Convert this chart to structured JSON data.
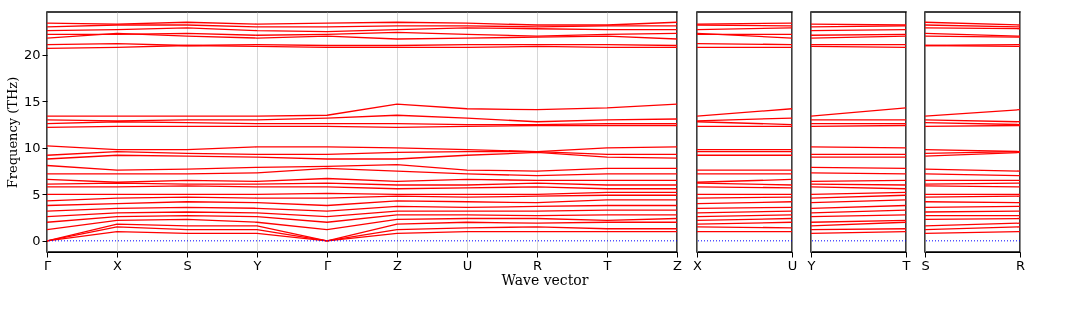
{
  "chart_data": [
    {
      "type": "line",
      "ylabel": "Frequency (THz)",
      "xlabel": "Wave vector",
      "categories": [
        "Γ",
        "X",
        "S",
        "Y",
        "Γ",
        "Z",
        "U",
        "R",
        "T",
        "Z"
      ],
      "ylim": [
        -1.2,
        24.6
      ],
      "yticks": [
        0,
        5,
        10,
        15,
        20
      ],
      "grid": "x",
      "legend": false,
      "marker": "none",
      "line_style": "solid",
      "ref_lines": [
        {
          "axis": "y",
          "value": 0,
          "color": "#0000ff",
          "line_style": "dotted"
        }
      ],
      "series": [
        {
          "color": "#ff0000",
          "values": [
            0,
            1.0,
            0.8,
            0.8,
            0,
            0.8,
            1.0,
            1.0,
            1.0,
            1.0
          ]
        },
        {
          "color": "#ff0000",
          "values": [
            0,
            1.5,
            1.2,
            1.2,
            0,
            1.2,
            1.4,
            1.5,
            1.3,
            1.3
          ]
        },
        {
          "color": "#ff0000",
          "values": [
            0,
            1.8,
            1.6,
            1.6,
            0,
            1.8,
            2.0,
            1.9,
            2.0,
            2.0
          ]
        },
        {
          "color": "#ff0000",
          "values": [
            1.2,
            2.2,
            2.3,
            2.0,
            1.2,
            2.3,
            2.4,
            2.4,
            2.2,
            2.4
          ]
        },
        {
          "color": "#ff0000",
          "values": [
            2.0,
            2.6,
            2.7,
            2.6,
            2.0,
            2.8,
            2.8,
            2.7,
            2.8,
            2.8
          ]
        },
        {
          "color": "#ff0000",
          "values": [
            2.6,
            3.0,
            3.1,
            3.0,
            2.6,
            3.2,
            3.2,
            3.2,
            3.3,
            3.3
          ]
        },
        {
          "color": "#ff0000",
          "values": [
            3.2,
            3.5,
            3.6,
            3.5,
            3.2,
            3.7,
            3.6,
            3.7,
            3.8,
            3.8
          ]
        },
        {
          "color": "#ff0000",
          "values": [
            3.8,
            4.0,
            4.2,
            4.1,
            3.8,
            4.3,
            4.2,
            4.1,
            4.4,
            4.4
          ]
        },
        {
          "color": "#ff0000",
          "values": [
            4.3,
            4.6,
            4.7,
            4.6,
            4.6,
            4.8,
            4.7,
            4.8,
            4.9,
            4.9
          ]
        },
        {
          "color": "#ff0000",
          "values": [
            5.0,
            5.0,
            5.0,
            5.0,
            5.1,
            5.0,
            5.0,
            5.0,
            5.2,
            5.2
          ]
        },
        {
          "color": "#ff0000",
          "values": [
            5.8,
            5.8,
            5.9,
            5.8,
            5.8,
            5.6,
            5.7,
            5.8,
            5.6,
            5.6
          ]
        },
        {
          "color": "#ff0000",
          "values": [
            6.1,
            6.2,
            6.1,
            6.1,
            6.2,
            6.0,
            6.0,
            6.2,
            6.0,
            6.0
          ]
        },
        {
          "color": "#ff0000",
          "values": [
            6.6,
            6.3,
            6.5,
            6.4,
            6.7,
            6.4,
            6.6,
            6.5,
            6.5,
            6.5
          ]
        },
        {
          "color": "#ff0000",
          "values": [
            7.2,
            7.2,
            7.2,
            7.3,
            7.8,
            7.5,
            7.2,
            7.0,
            7.2,
            7.2
          ]
        },
        {
          "color": "#ff0000",
          "values": [
            8.1,
            7.6,
            7.7,
            7.9,
            8.0,
            8.2,
            7.6,
            7.5,
            7.8,
            7.8
          ]
        },
        {
          "color": "#ff0000",
          "values": [
            8.8,
            9.2,
            9.1,
            9.0,
            8.8,
            8.8,
            9.2,
            9.5,
            9.0,
            8.9
          ]
        },
        {
          "color": "#ff0000",
          "values": [
            9.2,
            9.6,
            9.4,
            9.3,
            9.3,
            9.5,
            9.6,
            9.6,
            9.3,
            9.3
          ]
        },
        {
          "color": "#ff0000",
          "values": [
            10.2,
            9.8,
            9.8,
            10.1,
            10.1,
            10.0,
            9.8,
            9.6,
            10.0,
            10.1
          ]
        },
        {
          "color": "#ff0000",
          "values": [
            12.2,
            12.3,
            12.3,
            12.3,
            12.3,
            12.2,
            12.3,
            12.4,
            12.4,
            12.4
          ]
        },
        {
          "color": "#ff0000",
          "values": [
            12.6,
            12.8,
            12.7,
            12.6,
            12.6,
            12.6,
            12.5,
            12.5,
            12.6,
            12.6
          ]
        },
        {
          "color": "#ff0000",
          "values": [
            13.0,
            12.9,
            13.0,
            13.0,
            13.2,
            13.5,
            13.2,
            12.8,
            13.0,
            13.1
          ]
        },
        {
          "color": "#ff0000",
          "values": [
            13.4,
            13.4,
            13.4,
            13.4,
            13.5,
            14.7,
            14.2,
            14.1,
            14.3,
            14.7
          ]
        },
        {
          "color": "#ff0000",
          "values": [
            20.7,
            20.8,
            21.0,
            20.9,
            20.8,
            20.8,
            20.8,
            20.9,
            20.8,
            20.8
          ]
        },
        {
          "color": "#ff0000",
          "values": [
            21.1,
            21.2,
            21.0,
            21.1,
            21.0,
            21.0,
            21.1,
            21.1,
            21.1,
            21.0
          ]
        },
        {
          "color": "#ff0000",
          "values": [
            21.8,
            22.3,
            22.0,
            21.8,
            22.0,
            21.7,
            21.8,
            21.9,
            22.0,
            21.7
          ]
        },
        {
          "color": "#ff0000",
          "values": [
            22.2,
            22.2,
            22.3,
            22.1,
            22.2,
            22.4,
            22.2,
            22.0,
            22.2,
            22.3
          ]
        },
        {
          "color": "#ff0000",
          "values": [
            22.6,
            22.7,
            22.9,
            22.6,
            22.5,
            22.7,
            22.9,
            22.8,
            22.7,
            22.7
          ]
        },
        {
          "color": "#ff0000",
          "values": [
            23.0,
            23.2,
            23.2,
            23.0,
            23.0,
            23.1,
            23.1,
            23.0,
            23.1,
            23.1
          ]
        },
        {
          "color": "#ff0000",
          "values": [
            23.4,
            23.3,
            23.5,
            23.3,
            23.4,
            23.5,
            23.4,
            23.2,
            23.2,
            23.5
          ]
        }
      ]
    },
    {
      "type": "line",
      "categories": [
        "X",
        "U"
      ],
      "ylim": [
        -1.2,
        24.6
      ],
      "yticks": [
        0,
        5,
        10,
        15,
        20
      ],
      "tick_labels": "x",
      "grid": "x",
      "legend": false,
      "marker": "none",
      "line_style": "solid",
      "ref_lines": [
        {
          "axis": "y",
          "value": 0,
          "color": "#0000ff",
          "line_style": "dotted"
        }
      ],
      "series": [
        {
          "color": "#ff0000",
          "values": [
            1.0,
            1.0
          ]
        },
        {
          "color": "#ff0000",
          "values": [
            1.5,
            1.4
          ]
        },
        {
          "color": "#ff0000",
          "values": [
            1.8,
            2.0
          ]
        },
        {
          "color": "#ff0000",
          "values": [
            2.2,
            2.4
          ]
        },
        {
          "color": "#ff0000",
          "values": [
            2.6,
            2.8
          ]
        },
        {
          "color": "#ff0000",
          "values": [
            3.0,
            3.2
          ]
        },
        {
          "color": "#ff0000",
          "values": [
            3.5,
            3.6
          ]
        },
        {
          "color": "#ff0000",
          "values": [
            4.0,
            4.2
          ]
        },
        {
          "color": "#ff0000",
          "values": [
            4.6,
            4.7
          ]
        },
        {
          "color": "#ff0000",
          "values": [
            5.0,
            5.0
          ]
        },
        {
          "color": "#ff0000",
          "values": [
            5.8,
            5.7
          ]
        },
        {
          "color": "#ff0000",
          "values": [
            6.2,
            6.0
          ]
        },
        {
          "color": "#ff0000",
          "values": [
            6.3,
            6.6
          ]
        },
        {
          "color": "#ff0000",
          "values": [
            7.2,
            7.2
          ]
        },
        {
          "color": "#ff0000",
          "values": [
            7.6,
            7.6
          ]
        },
        {
          "color": "#ff0000",
          "values": [
            9.2,
            9.2
          ]
        },
        {
          "color": "#ff0000",
          "values": [
            9.6,
            9.6
          ]
        },
        {
          "color": "#ff0000",
          "values": [
            9.8,
            9.8
          ]
        },
        {
          "color": "#ff0000",
          "values": [
            12.3,
            12.3
          ]
        },
        {
          "color": "#ff0000",
          "values": [
            12.8,
            12.5
          ]
        },
        {
          "color": "#ff0000",
          "values": [
            12.9,
            13.2
          ]
        },
        {
          "color": "#ff0000",
          "values": [
            13.4,
            14.2
          ]
        },
        {
          "color": "#ff0000",
          "values": [
            20.8,
            20.8
          ]
        },
        {
          "color": "#ff0000",
          "values": [
            21.2,
            21.1
          ]
        },
        {
          "color": "#ff0000",
          "values": [
            22.3,
            21.8
          ]
        },
        {
          "color": "#ff0000",
          "values": [
            22.2,
            22.2
          ]
        },
        {
          "color": "#ff0000",
          "values": [
            22.7,
            22.9
          ]
        },
        {
          "color": "#ff0000",
          "values": [
            23.2,
            23.1
          ]
        },
        {
          "color": "#ff0000",
          "values": [
            23.3,
            23.4
          ]
        }
      ]
    },
    {
      "type": "line",
      "categories": [
        "Y",
        "T"
      ],
      "ylim": [
        -1.2,
        24.6
      ],
      "yticks": [
        0,
        5,
        10,
        15,
        20
      ],
      "tick_labels": "x",
      "grid": "x",
      "legend": false,
      "marker": "none",
      "line_style": "solid",
      "ref_lines": [
        {
          "axis": "y",
          "value": 0,
          "color": "#0000ff",
          "line_style": "dotted"
        }
      ],
      "series": [
        {
          "color": "#ff0000",
          "values": [
            0.8,
            1.0
          ]
        },
        {
          "color": "#ff0000",
          "values": [
            1.2,
            1.3
          ]
        },
        {
          "color": "#ff0000",
          "values": [
            1.6,
            2.0
          ]
        },
        {
          "color": "#ff0000",
          "values": [
            2.0,
            2.2
          ]
        },
        {
          "color": "#ff0000",
          "values": [
            2.6,
            2.8
          ]
        },
        {
          "color": "#ff0000",
          "values": [
            3.0,
            3.3
          ]
        },
        {
          "color": "#ff0000",
          "values": [
            3.5,
            3.8
          ]
        },
        {
          "color": "#ff0000",
          "values": [
            4.1,
            4.4
          ]
        },
        {
          "color": "#ff0000",
          "values": [
            4.6,
            4.9
          ]
        },
        {
          "color": "#ff0000",
          "values": [
            5.0,
            5.2
          ]
        },
        {
          "color": "#ff0000",
          "values": [
            5.8,
            5.6
          ]
        },
        {
          "color": "#ff0000",
          "values": [
            6.1,
            6.0
          ]
        },
        {
          "color": "#ff0000",
          "values": [
            6.4,
            6.5
          ]
        },
        {
          "color": "#ff0000",
          "values": [
            7.3,
            7.2
          ]
        },
        {
          "color": "#ff0000",
          "values": [
            7.9,
            7.8
          ]
        },
        {
          "color": "#ff0000",
          "values": [
            9.0,
            9.0
          ]
        },
        {
          "color": "#ff0000",
          "values": [
            9.3,
            9.3
          ]
        },
        {
          "color": "#ff0000",
          "values": [
            10.1,
            10.0
          ]
        },
        {
          "color": "#ff0000",
          "values": [
            12.3,
            12.4
          ]
        },
        {
          "color": "#ff0000",
          "values": [
            12.6,
            12.6
          ]
        },
        {
          "color": "#ff0000",
          "values": [
            13.0,
            13.0
          ]
        },
        {
          "color": "#ff0000",
          "values": [
            13.4,
            14.3
          ]
        },
        {
          "color": "#ff0000",
          "values": [
            20.9,
            20.8
          ]
        },
        {
          "color": "#ff0000",
          "values": [
            21.1,
            21.1
          ]
        },
        {
          "color": "#ff0000",
          "values": [
            21.8,
            22.0
          ]
        },
        {
          "color": "#ff0000",
          "values": [
            22.1,
            22.2
          ]
        },
        {
          "color": "#ff0000",
          "values": [
            22.6,
            22.7
          ]
        },
        {
          "color": "#ff0000",
          "values": [
            23.0,
            23.1
          ]
        },
        {
          "color": "#ff0000",
          "values": [
            23.3,
            23.2
          ]
        }
      ]
    },
    {
      "type": "line",
      "categories": [
        "S",
        "R"
      ],
      "ylim": [
        -1.2,
        24.6
      ],
      "yticks": [
        0,
        5,
        10,
        15,
        20
      ],
      "tick_labels": "x",
      "grid": "x",
      "legend": false,
      "marker": "none",
      "line_style": "solid",
      "ref_lines": [
        {
          "axis": "y",
          "value": 0,
          "color": "#0000ff",
          "line_style": "dotted"
        }
      ],
      "series": [
        {
          "color": "#ff0000",
          "values": [
            0.8,
            1.0
          ]
        },
        {
          "color": "#ff0000",
          "values": [
            1.2,
            1.5
          ]
        },
        {
          "color": "#ff0000",
          "values": [
            1.6,
            1.9
          ]
        },
        {
          "color": "#ff0000",
          "values": [
            2.3,
            2.4
          ]
        },
        {
          "color": "#ff0000",
          "values": [
            2.7,
            2.7
          ]
        },
        {
          "color": "#ff0000",
          "values": [
            3.1,
            3.2
          ]
        },
        {
          "color": "#ff0000",
          "values": [
            3.6,
            3.7
          ]
        },
        {
          "color": "#ff0000",
          "values": [
            4.2,
            4.1
          ]
        },
        {
          "color": "#ff0000",
          "values": [
            4.7,
            4.8
          ]
        },
        {
          "color": "#ff0000",
          "values": [
            5.0,
            5.0
          ]
        },
        {
          "color": "#ff0000",
          "values": [
            5.9,
            5.8
          ]
        },
        {
          "color": "#ff0000",
          "values": [
            6.1,
            6.2
          ]
        },
        {
          "color": "#ff0000",
          "values": [
            6.5,
            6.5
          ]
        },
        {
          "color": "#ff0000",
          "values": [
            7.2,
            7.0
          ]
        },
        {
          "color": "#ff0000",
          "values": [
            7.7,
            7.5
          ]
        },
        {
          "color": "#ff0000",
          "values": [
            9.1,
            9.5
          ]
        },
        {
          "color": "#ff0000",
          "values": [
            9.4,
            9.6
          ]
        },
        {
          "color": "#ff0000",
          "values": [
            9.8,
            9.6
          ]
        },
        {
          "color": "#ff0000",
          "values": [
            12.3,
            12.4
          ]
        },
        {
          "color": "#ff0000",
          "values": [
            12.7,
            12.5
          ]
        },
        {
          "color": "#ff0000",
          "values": [
            13.0,
            12.8
          ]
        },
        {
          "color": "#ff0000",
          "values": [
            13.4,
            14.1
          ]
        },
        {
          "color": "#ff0000",
          "values": [
            21.0,
            20.9
          ]
        },
        {
          "color": "#ff0000",
          "values": [
            21.0,
            21.1
          ]
        },
        {
          "color": "#ff0000",
          "values": [
            22.0,
            21.9
          ]
        },
        {
          "color": "#ff0000",
          "values": [
            22.3,
            22.0
          ]
        },
        {
          "color": "#ff0000",
          "values": [
            22.9,
            22.8
          ]
        },
        {
          "color": "#ff0000",
          "values": [
            23.2,
            23.0
          ]
        },
        {
          "color": "#ff0000",
          "values": [
            23.5,
            23.2
          ]
        }
      ]
    }
  ]
}
